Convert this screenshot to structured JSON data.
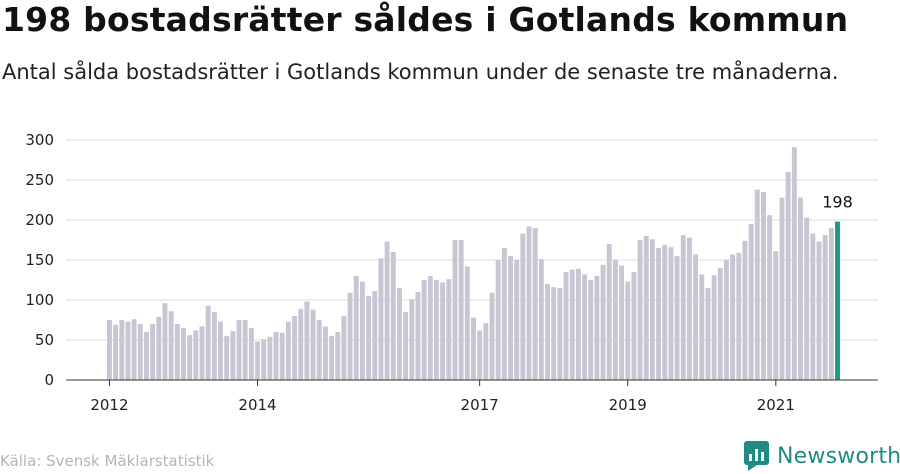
{
  "header": {
    "title": "198 bostadsrätter såldes i Gotlands kommun",
    "subtitle": "Antal sålda bostadsrätter i Gotlands kommun under de senaste tre månaderna."
  },
  "footer": {
    "source": "Källa: Svensk Mäklarstatistik",
    "brand": "Newsworthy"
  },
  "colors": {
    "bar": "#c7c6d2",
    "highlight": "#1a9a8a",
    "brand": "#1f8b84"
  },
  "chart_data": {
    "type": "bar",
    "title": "",
    "xlabel": "",
    "ylabel": "",
    "ylim": [
      0,
      300
    ],
    "yticks": [
      0,
      50,
      100,
      150,
      200,
      250,
      300
    ],
    "grid": true,
    "x_start": "2012-01",
    "xticks": [
      {
        "label": "2012",
        "month": "2012-01"
      },
      {
        "label": "2014",
        "month": "2014-01"
      },
      {
        "label": "2017",
        "month": "2017-01"
      },
      {
        "label": "2019",
        "month": "2019-01"
      },
      {
        "label": "2021",
        "month": "2021-01"
      }
    ],
    "highlight_label": "198",
    "values": [
      75,
      69,
      75,
      73,
      76,
      70,
      60,
      70,
      79,
      96,
      86,
      70,
      65,
      56,
      62,
      67,
      93,
      85,
      73,
      55,
      61,
      75,
      75,
      65,
      48,
      51,
      54,
      60,
      59,
      73,
      80,
      89,
      98,
      88,
      75,
      67,
      55,
      60,
      80,
      109,
      130,
      123,
      105,
      111,
      152,
      173,
      160,
      115,
      85,
      101,
      110,
      125,
      130,
      125,
      122,
      126,
      175,
      175,
      142,
      78,
      62,
      71,
      109,
      150,
      165,
      155,
      150,
      183,
      192,
      190,
      151,
      120,
      116,
      115,
      135,
      138,
      139,
      132,
      125,
      130,
      144,
      170,
      150,
      143,
      123,
      135,
      175,
      180,
      176,
      165,
      169,
      166,
      155,
      181,
      178,
      157,
      132,
      115,
      131,
      140,
      150,
      157,
      159,
      174,
      195,
      238,
      235,
      206,
      161,
      228,
      260,
      291,
      228,
      203,
      183,
      173,
      181,
      190,
      198
    ]
  }
}
